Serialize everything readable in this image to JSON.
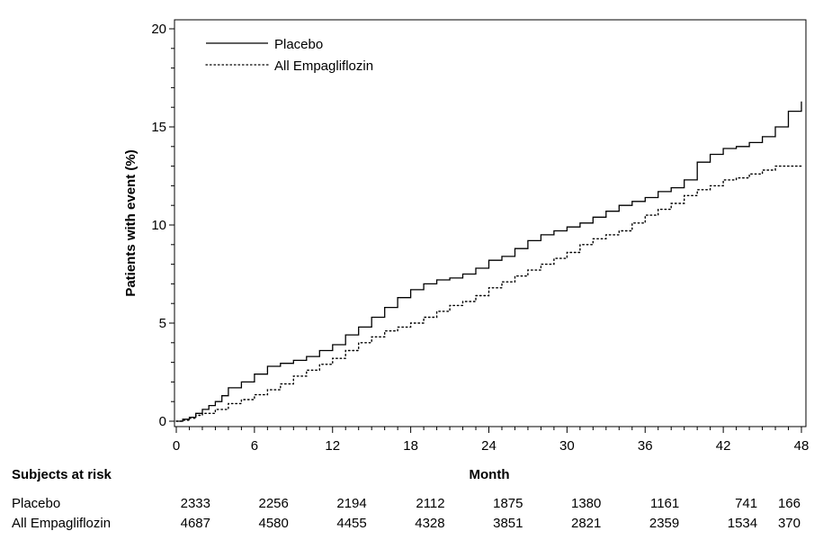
{
  "chart_data": {
    "type": "line",
    "ylabel": "Patients with event (%)",
    "xlabel": "Month",
    "xlim": [
      0,
      48
    ],
    "ylim": [
      0,
      20
    ],
    "xticks": [
      0,
      6,
      12,
      18,
      24,
      30,
      36,
      42,
      48
    ],
    "yticks": [
      0,
      5,
      10,
      15,
      20
    ],
    "grid": false,
    "legend_position": "top-left",
    "step": true,
    "series": [
      {
        "name": "Placebo",
        "line_style": "solid",
        "color": "#000000",
        "x": [
          0,
          0.5,
          1,
          1.5,
          2,
          2.5,
          3,
          3.5,
          4,
          5,
          6,
          7,
          8,
          9,
          10,
          11,
          12,
          13,
          14,
          15,
          16,
          17,
          18,
          19,
          20,
          21,
          22,
          23,
          24,
          25,
          26,
          27,
          28,
          29,
          30,
          31,
          32,
          33,
          34,
          35,
          36,
          37,
          38,
          39,
          40,
          41,
          42,
          43,
          44,
          45,
          46,
          47,
          48
        ],
        "values": [
          0,
          0.1,
          0.2,
          0.4,
          0.6,
          0.8,
          1.0,
          1.3,
          1.7,
          2.0,
          2.4,
          2.8,
          2.95,
          3.1,
          3.3,
          3.6,
          3.9,
          4.4,
          4.8,
          5.3,
          5.8,
          6.3,
          6.7,
          7.0,
          7.2,
          7.3,
          7.5,
          7.8,
          8.2,
          8.4,
          8.8,
          9.2,
          9.5,
          9.7,
          9.9,
          10.1,
          10.4,
          10.7,
          11.0,
          11.2,
          11.4,
          11.7,
          11.9,
          12.3,
          13.2,
          13.6,
          13.9,
          14.0,
          14.2,
          14.5,
          15.0,
          15.8,
          16.3
        ]
      },
      {
        "name": "All Empagliflozin",
        "line_style": "dotted",
        "color": "#000000",
        "x": [
          0,
          0.5,
          1,
          1.5,
          2,
          3,
          4,
          5,
          6,
          7,
          8,
          9,
          10,
          11,
          12,
          13,
          14,
          15,
          16,
          17,
          18,
          19,
          20,
          21,
          22,
          23,
          24,
          25,
          26,
          27,
          28,
          29,
          30,
          31,
          32,
          33,
          34,
          35,
          36,
          37,
          38,
          39,
          40,
          41,
          42,
          43,
          44,
          45,
          46,
          47,
          48
        ],
        "values": [
          0,
          0.05,
          0.15,
          0.3,
          0.4,
          0.6,
          0.9,
          1.1,
          1.35,
          1.6,
          1.9,
          2.3,
          2.6,
          2.9,
          3.2,
          3.6,
          4.0,
          4.3,
          4.6,
          4.8,
          5.0,
          5.3,
          5.6,
          5.9,
          6.1,
          6.4,
          6.8,
          7.1,
          7.4,
          7.7,
          8.0,
          8.3,
          8.6,
          9.0,
          9.3,
          9.5,
          9.7,
          10.1,
          10.5,
          10.8,
          11.1,
          11.5,
          11.8,
          12.0,
          12.3,
          12.4,
          12.6,
          12.8,
          13.0,
          13.0,
          13.0
        ]
      }
    ],
    "risk_table": {
      "title": "Subjects at risk",
      "timepoints": [
        0,
        6,
        12,
        18,
        24,
        30,
        36,
        42,
        48
      ],
      "rows": [
        {
          "label": "Placebo",
          "values": [
            "2333",
            "2256",
            "2194",
            "2112",
            "1875",
            "1380",
            "1161",
            "741",
            "166"
          ]
        },
        {
          "label": "All Empagliflozin",
          "values": [
            "4687",
            "4580",
            "4455",
            "4328",
            "3851",
            "2821",
            "2359",
            "1534",
            "370"
          ]
        }
      ]
    }
  }
}
